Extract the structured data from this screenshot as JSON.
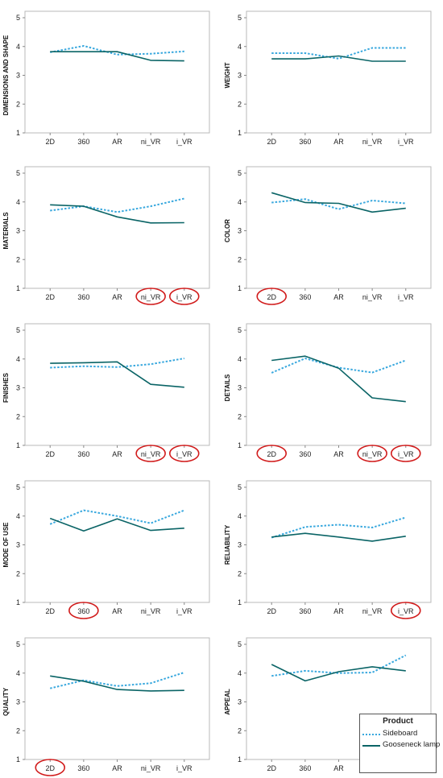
{
  "colors": {
    "sideboard": "#39A8DE",
    "gooseneck": "#0A6466",
    "highlight": "#D11B1B",
    "frame": "#b9b9b9"
  },
  "legend": {
    "title": "Product",
    "items": [
      {
        "label": "Sideboard",
        "style": "dotted"
      },
      {
        "label": "Gooseneck lamp",
        "style": "solid"
      }
    ]
  },
  "chart_data": [
    {
      "type": "line",
      "ylabel": "DIMENSIONS AND SHAPE",
      "categories": [
        "2D",
        "360",
        "AR",
        "ni_VR",
        "i_VR"
      ],
      "ylim": [
        1,
        5
      ],
      "yticks": [
        1,
        2,
        3,
        4,
        5
      ],
      "grid": false,
      "series": [
        {
          "name": "Sideboard",
          "values": [
            3.8,
            4.02,
            3.72,
            3.75,
            3.83
          ]
        },
        {
          "name": "Gooseneck lamp",
          "values": [
            3.82,
            3.82,
            3.82,
            3.52,
            3.5
          ]
        }
      ],
      "highlighted": []
    },
    {
      "type": "line",
      "ylabel": "WEIGHT",
      "categories": [
        "2D",
        "360",
        "AR",
        "ni_VR",
        "i_VR"
      ],
      "ylim": [
        1,
        5
      ],
      "yticks": [
        1,
        2,
        3,
        4,
        5
      ],
      "grid": false,
      "series": [
        {
          "name": "Sideboard",
          "values": [
            3.77,
            3.77,
            3.58,
            3.95,
            3.95
          ]
        },
        {
          "name": "Gooseneck lamp",
          "values": [
            3.57,
            3.57,
            3.67,
            3.49,
            3.49
          ]
        }
      ],
      "highlighted": []
    },
    {
      "type": "line",
      "ylabel": "MATERIALS",
      "categories": [
        "2D",
        "360",
        "AR",
        "ni_VR",
        "i_VR"
      ],
      "ylim": [
        1,
        5
      ],
      "yticks": [
        1,
        2,
        3,
        4,
        5
      ],
      "grid": false,
      "series": [
        {
          "name": "Sideboard",
          "values": [
            3.7,
            3.85,
            3.65,
            3.85,
            4.12
          ]
        },
        {
          "name": "Gooseneck lamp",
          "values": [
            3.9,
            3.85,
            3.48,
            3.27,
            3.28
          ]
        }
      ],
      "highlighted": [
        "ni_VR",
        "i_VR"
      ]
    },
    {
      "type": "line",
      "ylabel": "COLOR",
      "categories": [
        "2D",
        "360",
        "AR",
        "ni_VR",
        "i_VR"
      ],
      "ylim": [
        1,
        5
      ],
      "yticks": [
        1,
        2,
        3,
        4,
        5
      ],
      "grid": false,
      "series": [
        {
          "name": "Sideboard",
          "values": [
            3.98,
            4.1,
            3.75,
            4.05,
            3.95
          ]
        },
        {
          "name": "Gooseneck lamp",
          "values": [
            4.32,
            3.98,
            3.95,
            3.65,
            3.78
          ]
        }
      ],
      "highlighted": [
        "2D"
      ]
    },
    {
      "type": "line",
      "ylabel": "FINISHES",
      "categories": [
        "2D",
        "360",
        "AR",
        "ni_VR",
        "i_VR"
      ],
      "ylim": [
        1,
        5
      ],
      "yticks": [
        1,
        2,
        3,
        4,
        5
      ],
      "grid": false,
      "series": [
        {
          "name": "Sideboard",
          "values": [
            3.7,
            3.75,
            3.72,
            3.82,
            4.02
          ]
        },
        {
          "name": "Gooseneck lamp",
          "values": [
            3.85,
            3.87,
            3.9,
            3.12,
            3.02
          ]
        }
      ],
      "highlighted": [
        "ni_VR",
        "i_VR"
      ]
    },
    {
      "type": "line",
      "ylabel": "DETAILS",
      "categories": [
        "2D",
        "360",
        "AR",
        "ni_VR",
        "i_VR"
      ],
      "ylim": [
        1,
        5
      ],
      "yticks": [
        1,
        2,
        3,
        4,
        5
      ],
      "grid": false,
      "series": [
        {
          "name": "Sideboard",
          "values": [
            3.52,
            4.02,
            3.7,
            3.53,
            3.95
          ]
        },
        {
          "name": "Gooseneck lamp",
          "values": [
            3.95,
            4.1,
            3.68,
            2.65,
            2.52
          ]
        }
      ],
      "highlighted": [
        "2D",
        "ni_VR",
        "i_VR"
      ]
    },
    {
      "type": "line",
      "ylabel": "MODE OF USE",
      "categories": [
        "2D",
        "360",
        "AR",
        "ni_VR",
        "i_VR"
      ],
      "ylim": [
        1,
        5
      ],
      "yticks": [
        1,
        2,
        3,
        4,
        5
      ],
      "grid": false,
      "series": [
        {
          "name": "Sideboard",
          "values": [
            3.72,
            4.2,
            4.0,
            3.75,
            4.2
          ]
        },
        {
          "name": "Gooseneck lamp",
          "values": [
            3.92,
            3.48,
            3.9,
            3.5,
            3.58
          ]
        }
      ],
      "highlighted": [
        "360"
      ]
    },
    {
      "type": "line",
      "ylabel": "RELIABILITY",
      "categories": [
        "2D",
        "360",
        "AR",
        "ni_VR",
        "i_VR"
      ],
      "ylim": [
        1,
        5
      ],
      "yticks": [
        1,
        2,
        3,
        4,
        5
      ],
      "grid": false,
      "series": [
        {
          "name": "Sideboard",
          "values": [
            3.25,
            3.62,
            3.7,
            3.6,
            3.95
          ]
        },
        {
          "name": "Gooseneck lamp",
          "values": [
            3.27,
            3.4,
            3.27,
            3.13,
            3.3
          ]
        }
      ],
      "highlighted": [
        "i_VR"
      ]
    },
    {
      "type": "line",
      "ylabel": "QUALITY",
      "categories": [
        "2D",
        "360",
        "AR",
        "ni_VR",
        "i_VR"
      ],
      "ylim": [
        1,
        5
      ],
      "yticks": [
        1,
        2,
        3,
        4,
        5
      ],
      "grid": false,
      "series": [
        {
          "name": "Sideboard",
          "values": [
            3.47,
            3.75,
            3.55,
            3.65,
            4.02
          ]
        },
        {
          "name": "Gooseneck lamp",
          "values": [
            3.9,
            3.72,
            3.43,
            3.38,
            3.4
          ]
        }
      ],
      "highlighted": [
        "2D"
      ]
    },
    {
      "type": "line",
      "ylabel": "APPEAL",
      "categories": [
        "2D",
        "360",
        "AR",
        "ni_VR",
        "i_VR"
      ],
      "ylim": [
        1,
        5
      ],
      "yticks": [
        1,
        2,
        3,
        4,
        5
      ],
      "grid": false,
      "series": [
        {
          "name": "Sideboard",
          "values": [
            3.9,
            4.08,
            4.0,
            4.02,
            4.62
          ]
        },
        {
          "name": "Gooseneck lamp",
          "values": [
            4.3,
            3.73,
            4.05,
            4.22,
            4.08
          ]
        }
      ],
      "highlighted": []
    }
  ]
}
